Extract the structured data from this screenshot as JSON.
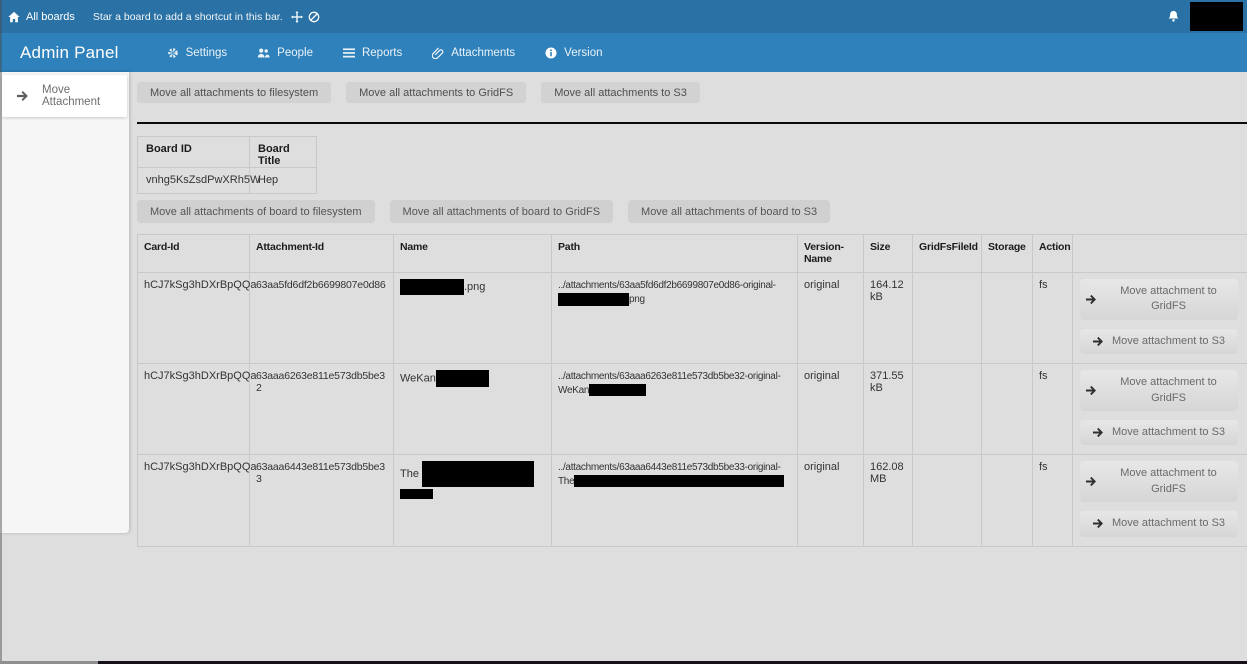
{
  "colors": {
    "topbar_bg": "#2a72a5",
    "header_bg": "#2e81ba",
    "page_bg": "#dedede",
    "sidebar_bg": "#f6f6f6",
    "card_bg": "#ffffff",
    "table_border": "#c9c9c9",
    "divider": "#0a0a0a",
    "button_bg": "#d2d2d2",
    "button_text": "#4f4f4f",
    "redaction": "#000000"
  },
  "topbar": {
    "all_boards_label": "All boards",
    "shortcut_hint": "Star a board to add a shortcut in this bar.",
    "icons": [
      "home-icon",
      "move-icon",
      "block-icon",
      "bell-icon"
    ]
  },
  "header": {
    "title": "Admin Panel",
    "nav": [
      {
        "icon": "gear-icon",
        "label": "Settings"
      },
      {
        "icon": "people-icon",
        "label": "People"
      },
      {
        "icon": "list-icon",
        "label": "Reports"
      },
      {
        "icon": "paperclip-icon",
        "label": "Attachments"
      },
      {
        "icon": "info-icon",
        "label": "Version"
      }
    ]
  },
  "sidebar": {
    "items": [
      {
        "icon": "arrow-right-icon",
        "label": "Move Attachment",
        "active": true
      }
    ]
  },
  "main": {
    "global_buttons": [
      "Move all attachments to filesystem",
      "Move all attachments to GridFS",
      "Move all attachments to S3"
    ],
    "board_table": {
      "headers": [
        "Board ID",
        "Board Title"
      ],
      "rows": [
        {
          "board_id": "vnhg5KsZsdPwXRh5W",
          "board_title": "Hep"
        }
      ]
    },
    "board_buttons": [
      "Move all attachments of board to filesystem",
      "Move all attachments of board to GridFS",
      "Move all attachments of board to S3"
    ],
    "attachments_table": {
      "headers": [
        "Card-Id",
        "Attachment-Id",
        "Name",
        "Path",
        "Version-Name",
        "Size",
        "GridFsFileId",
        "Storage",
        "Action",
        ""
      ],
      "row_buttons": [
        "Move attachment to GridFS",
        "Move attachment to S3"
      ],
      "rows": [
        {
          "card_id": "hCJ7kSg3hDXrBpQQa",
          "attachment_id": "63aa5fd6df2b6699807e0d86",
          "name": [
            {
              "redact": [
                64,
                16
              ]
            },
            {
              "text": ".png"
            }
          ],
          "path": [
            {
              "text": "../attachments/63aa5fd6df2b6699807e0d86-original-"
            },
            {
              "br": 1
            },
            {
              "redact": [
                71,
                13
              ]
            },
            {
              "text": "png"
            }
          ],
          "version_name": "original",
          "size": "164.12 kB",
          "gridfs_file_id": "",
          "storage": "",
          "action": "fs"
        },
        {
          "card_id": "hCJ7kSg3hDXrBpQQa",
          "attachment_id": "63aaa6263e811e573db5be32",
          "name": [
            {
              "text": "WeKan"
            },
            {
              "redact": [
                53,
                17
              ]
            }
          ],
          "path": [
            {
              "text": "../attachments/63aaa6263e811e573db5be32-original-"
            },
            {
              "br": 1
            },
            {
              "text": "WeKan"
            },
            {
              "redact": [
                57,
                12
              ]
            }
          ],
          "version_name": "original",
          "size": "371.55 kB",
          "gridfs_file_id": "",
          "storage": "",
          "action": "fs"
        },
        {
          "card_id": "hCJ7kSg3hDXrBpQQa",
          "attachment_id": "63aaa6443e811e573db5be33",
          "name": [
            {
              "text": "The "
            },
            {
              "redact": [
                112,
                26
              ]
            },
            {
              "br": 1
            },
            {
              "redact": [
                33,
                10
              ]
            }
          ],
          "path": [
            {
              "text": "../attachments/63aaa6443e811e573db5be33-original-"
            },
            {
              "br": 1
            },
            {
              "text": "The"
            },
            {
              "redact": [
                210,
                12
              ]
            }
          ],
          "version_name": "original",
          "size": "162.08 MB",
          "gridfs_file_id": "",
          "storage": "",
          "action": "fs"
        }
      ]
    }
  }
}
